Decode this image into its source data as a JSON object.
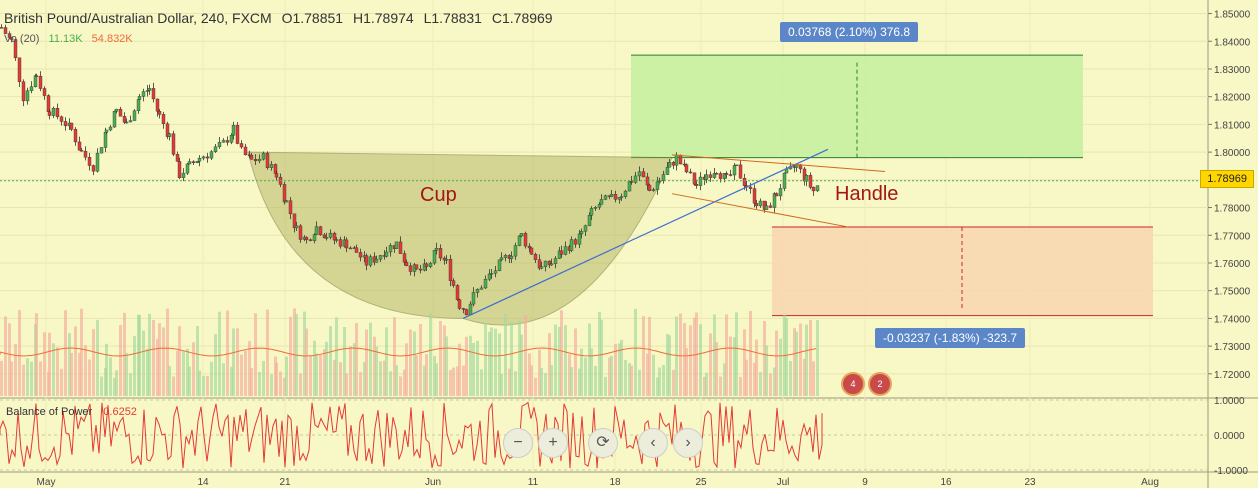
{
  "header": {
    "symbol": "British Pound/Australian Dollar, 240, FXCM",
    "open": "O1.78851",
    "high": "H1.78974",
    "low": "L1.78831",
    "close": "C1.78969"
  },
  "volume_legend": {
    "label": "Vo (20)",
    "v1": "11.13K",
    "v2": "54.832K"
  },
  "bop_legend": {
    "label": "Balance of Power",
    "value": "0.6252"
  },
  "price_tag": "1.78969",
  "target_box": "0.03768 (2.10%) 376.8",
  "stop_box": "-0.03237 (-1.83%) -323.7",
  "annotations": {
    "cup": "Cup",
    "handle": "Handle"
  },
  "flags": {
    "a": "4",
    "b": "2"
  },
  "controls": {
    "zoom_out": "−",
    "zoom_in": "+",
    "reset": "⟳",
    "prev": "‹",
    "next": "›"
  },
  "colors": {
    "up": "#4caf50",
    "down": "#e53935",
    "cup_fill": "#b8b86a",
    "target": "#c8f0a0",
    "stop": "#f8d7b0",
    "line": "#3b6fd1",
    "handle_line": "#d2691e"
  },
  "chart_data": [
    {
      "type": "candlestick",
      "title": "",
      "x": [
        "May",
        "14",
        "21",
        "Jun",
        "11",
        "18",
        "25",
        "Jul",
        "9",
        "16",
        "23",
        "Aug"
      ],
      "ylim": [
        1.712,
        1.852
      ],
      "yticks": [
        "1.85000",
        "1.84000",
        "1.83000",
        "1.82000",
        "1.81000",
        "1.80000",
        "1.79000",
        "1.78000",
        "1.77000",
        "1.76000",
        "1.75000",
        "1.74000",
        "1.73000",
        "1.72000"
      ],
      "last_price": 1.78969,
      "path": [
        [
          0,
          1.845
        ],
        [
          10,
          1.84
        ],
        [
          22,
          1.82
        ],
        [
          35,
          1.828
        ],
        [
          48,
          1.815
        ],
        [
          60,
          1.812
        ],
        [
          70,
          1.808
        ],
        [
          80,
          1.8
        ],
        [
          92,
          1.795
        ],
        [
          105,
          1.808
        ],
        [
          115,
          1.815
        ],
        [
          125,
          1.81
        ],
        [
          138,
          1.82
        ],
        [
          148,
          1.823
        ],
        [
          158,
          1.813
        ],
        [
          168,
          1.806
        ],
        [
          178,
          1.792
        ],
        [
          188,
          1.795
        ],
        [
          198,
          1.798
        ],
        [
          210,
          1.8
        ],
        [
          222,
          1.803
        ],
        [
          232,
          1.808
        ],
        [
          240,
          1.8
        ],
        [
          250,
          1.797
        ],
        [
          262,
          1.798
        ],
        [
          275,
          1.792
        ],
        [
          285,
          1.782
        ],
        [
          295,
          1.772
        ],
        [
          305,
          1.768
        ],
        [
          315,
          1.773
        ],
        [
          325,
          1.77
        ],
        [
          335,
          1.768
        ],
        [
          345,
          1.767
        ],
        [
          355,
          1.764
        ],
        [
          365,
          1.76
        ],
        [
          375,
          1.762
        ],
        [
          385,
          1.765
        ],
        [
          395,
          1.767
        ],
        [
          405,
          1.76
        ],
        [
          415,
          1.757
        ],
        [
          425,
          1.758
        ],
        [
          435,
          1.764
        ],
        [
          445,
          1.76
        ],
        [
          452,
          1.752
        ],
        [
          458,
          1.745
        ],
        [
          465,
          1.743
        ],
        [
          472,
          1.748
        ],
        [
          480,
          1.752
        ],
        [
          490,
          1.756
        ],
        [
          500,
          1.76
        ],
        [
          510,
          1.764
        ],
        [
          520,
          1.77
        ],
        [
          530,
          1.764
        ],
        [
          540,
          1.758
        ],
        [
          550,
          1.76
        ],
        [
          560,
          1.764
        ],
        [
          570,
          1.767
        ],
        [
          580,
          1.77
        ],
        [
          590,
          1.778
        ],
        [
          600,
          1.782
        ],
        [
          610,
          1.783
        ],
        [
          620,
          1.785
        ],
        [
          630,
          1.79
        ],
        [
          638,
          1.793
        ],
        [
          648,
          1.786
        ],
        [
          658,
          1.79
        ],
        [
          668,
          1.795
        ],
        [
          675,
          1.798
        ],
        [
          685,
          1.793
        ],
        [
          695,
          1.788
        ],
        [
          705,
          1.792
        ],
        [
          715,
          1.794
        ],
        [
          725,
          1.79
        ],
        [
          735,
          1.794
        ],
        [
          745,
          1.788
        ],
        [
          755,
          1.782
        ],
        [
          765,
          1.779
        ],
        [
          775,
          1.785
        ],
        [
          785,
          1.792
        ],
        [
          795,
          1.795
        ],
        [
          805,
          1.79
        ],
        [
          812,
          1.786
        ],
        [
          820,
          1.79
        ]
      ],
      "cup": {
        "left": [
          248,
          1.8
        ],
        "right": [
          672,
          1.798
        ],
        "bottom": [
          463,
          1.74
        ]
      },
      "trendline": [
        [
          463,
          1.74
        ],
        [
          828,
          1.801
        ]
      ],
      "handle_channel": {
        "upper": [
          [
            672,
            1.799
          ],
          [
            885,
            1.793
          ]
        ],
        "lower": [
          [
            672,
            1.785
          ],
          [
            848,
            1.773
          ]
        ]
      },
      "target_zone": {
        "x": [
          631,
          1083
        ],
        "y": [
          1.798,
          1.835
        ]
      },
      "stop_zone": {
        "x": [
          772,
          1153
        ],
        "y": [
          1.741,
          1.773
        ]
      }
    },
    {
      "type": "bar",
      "title": "Vo (20)",
      "note": "volume bars"
    },
    {
      "type": "line",
      "title": "Balance of Power",
      "ylim": [
        -1.0,
        1.0
      ],
      "yticks": [
        "1.0000",
        "0.0000",
        "-1.0000"
      ],
      "last_value": 0.6252
    }
  ]
}
